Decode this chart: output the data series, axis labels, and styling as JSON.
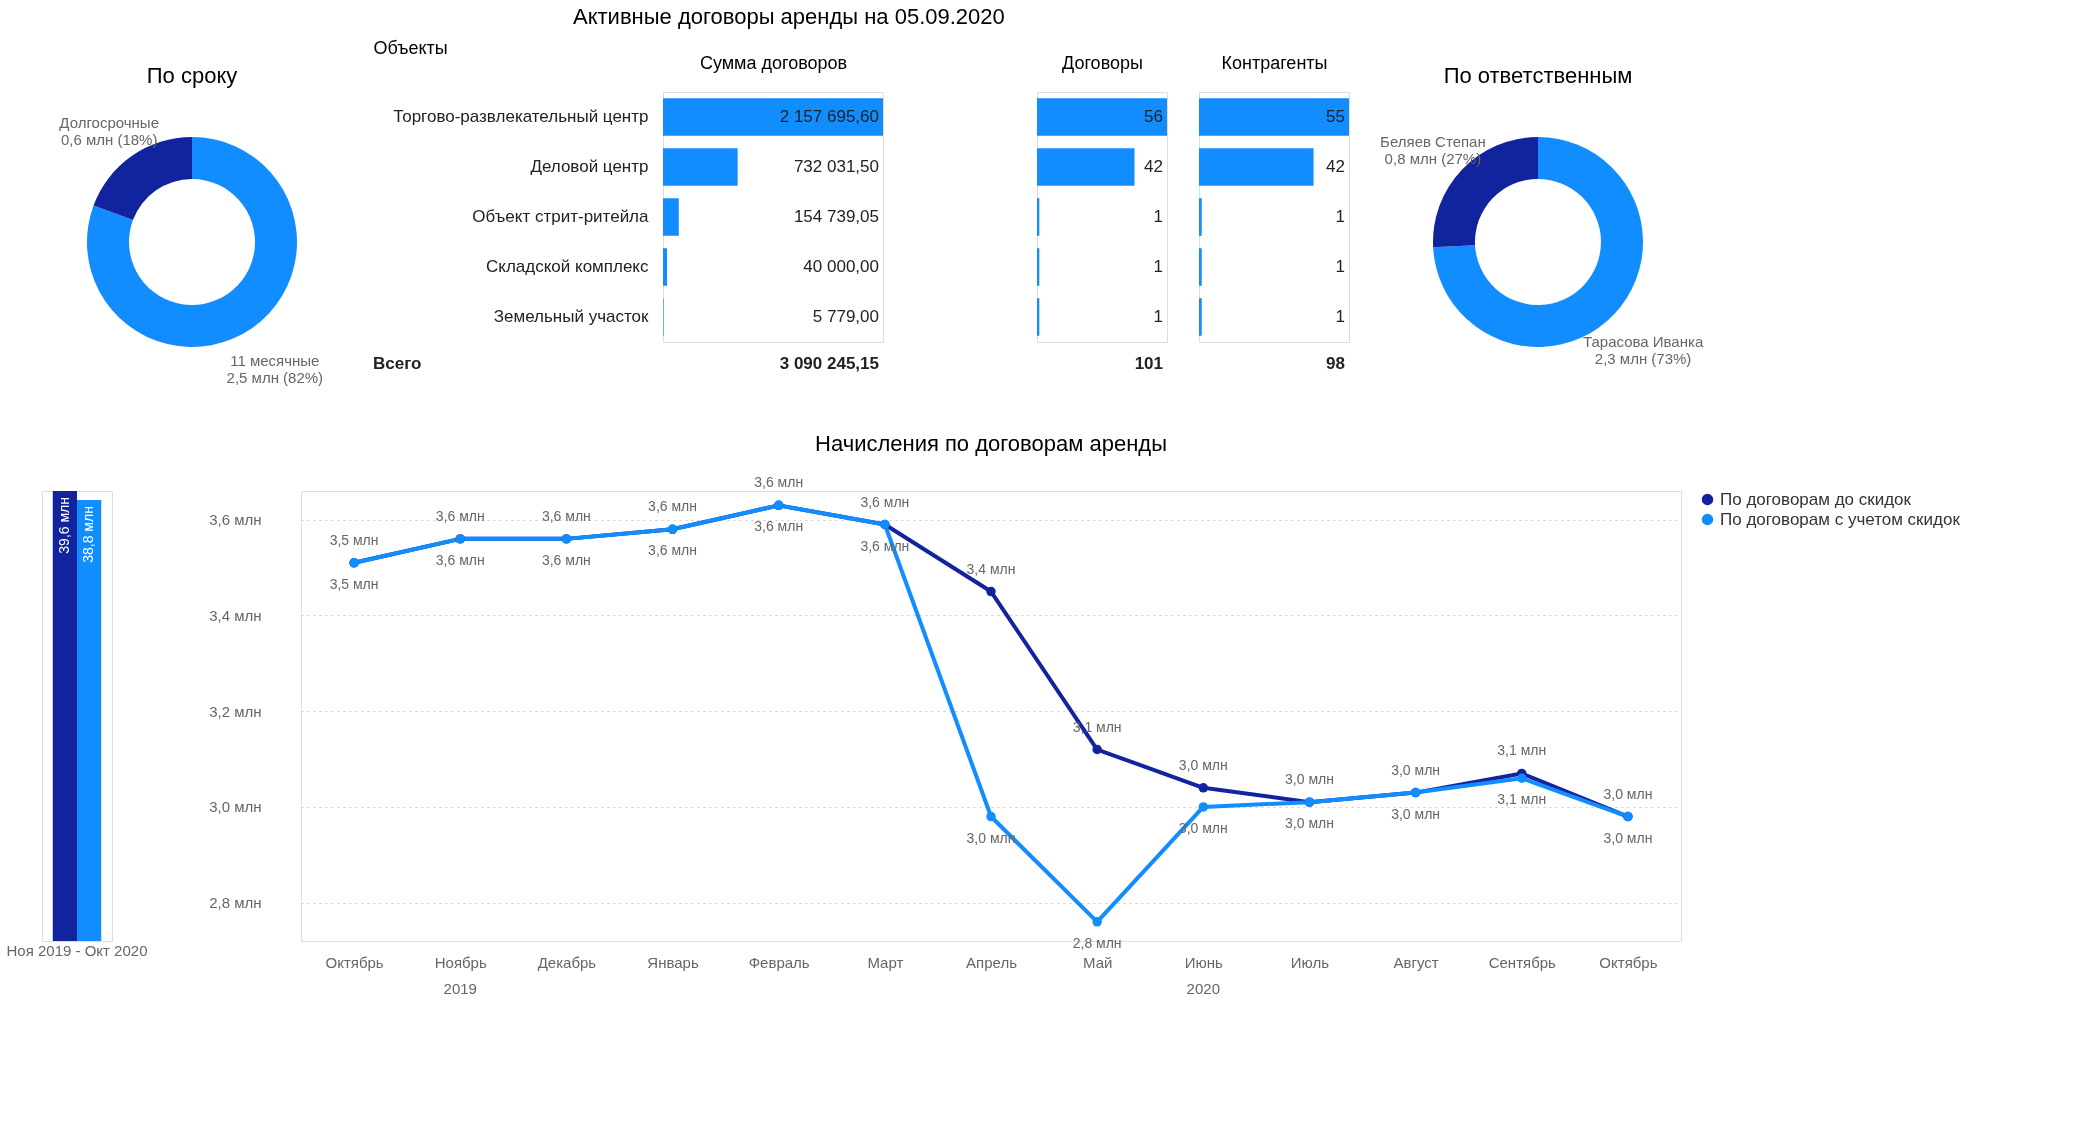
{
  "chart_data": [
    {
      "type": "donut",
      "title": "По сроку",
      "categories": [
        "11 месячные",
        "Долгосрочные"
      ],
      "values": [
        2.5,
        0.6
      ],
      "value_labels": [
        "2,5 млн (82%)",
        "0,6 млн (18%)"
      ],
      "colors": [
        "#118dff",
        "#12239e"
      ]
    },
    {
      "type": "bar",
      "orientation": "horizontal",
      "title": "Активные договоры аренды на 05.09.2020",
      "xlabel": "Сумма договоров",
      "ylabel": "Объекты",
      "categories": [
        "Торгово-развлекательный центр",
        "Деловой центр",
        "Объект стрит-ритейла",
        "Складской комплекс",
        "Земельный участок"
      ],
      "values": [
        2157695.6,
        732031.5,
        154739.05,
        40000.0,
        5779.0
      ],
      "value_labels": [
        "2 157 695,60",
        "732 031,50",
        "154 739,05",
        "40 000,00",
        "5 779,00"
      ],
      "color": "#118dff",
      "tick_labels": "y",
      "annotations": [
        "Всего",
        "3 090 245,15"
      ]
    },
    {
      "type": "bar",
      "orientation": "horizontal",
      "xlabel": "Договоры",
      "values": [
        56,
        42,
        1,
        1,
        1
      ],
      "data_labels": true,
      "color": "#118dff",
      "tick_labels": false,
      "annotations": [
        "101"
      ]
    },
    {
      "type": "bar",
      "orientation": "horizontal",
      "xlabel": "Контрагенты",
      "values": [
        55,
        42,
        1,
        1,
        1
      ],
      "data_labels": true,
      "color": "#118dff",
      "tick_labels": false,
      "annotations": [
        "98"
      ]
    },
    {
      "type": "donut",
      "title": "По ответственным",
      "categories": [
        "Тарасова Иванка",
        "Беляев Степан"
      ],
      "values": [
        2.3,
        0.8
      ],
      "value_labels": [
        "2,3 млн (73%)",
        "0,8 млн (27%)"
      ],
      "colors": [
        "#118dff",
        "#12239e"
      ]
    },
    {
      "type": "bar",
      "categories": [
        "Ноя 2019 - Окт 2020"
      ],
      "series": [
        {
          "color": "#12239e",
          "values": [
            39.6
          ],
          "value_labels": [
            "39,6 млн"
          ]
        },
        {
          "color": "#118dff",
          "values": [
            38.8
          ],
          "value_labels": [
            "38,8 млн"
          ]
        }
      ]
    },
    {
      "type": "line",
      "title": "Начисления по договорам аренды",
      "categories": [
        "Октябрь",
        "Ноябрь",
        "Декабрь",
        "Январь",
        "Февраль",
        "Март",
        "Апрель",
        "Май",
        "Июнь",
        "Июль",
        "Август",
        "Сентябрь",
        "Октябрь"
      ],
      "series": [
        {
          "name": "По договорам до скидок",
          "color": "#12239e",
          "values": [
            3.51,
            3.56,
            3.56,
            3.58,
            3.63,
            3.59,
            3.45,
            3.12,
            3.04,
            3.01,
            3.03,
            3.07,
            2.98
          ],
          "value_labels": [
            "3,5 млн",
            "3,6 млн",
            "3,6 млн",
            "3,6 млн",
            "3,6 млн",
            "3,6 млн",
            "3,4 млн",
            "3,1 млн",
            "3,0 млн",
            "3,0 млн",
            "3,0 млн",
            "3,1 млн",
            "3,0 млн"
          ]
        },
        {
          "name": "По договорам с учетом скидок",
          "color": "#118dff",
          "values": [
            3.51,
            3.56,
            3.56,
            3.58,
            3.63,
            3.59,
            2.98,
            2.76,
            3.0,
            3.01,
            3.03,
            3.06,
            2.98
          ],
          "value_labels": [
            "3,5 млн",
            "3,6 млн",
            "3,6 млн",
            "3,6 млн",
            "3,6 млн",
            "3,6 млн",
            "3,0 млн",
            "2,8 млн",
            "3,0 млн",
            "3,0 млн",
            "3,0 млн",
            "3,1 млн",
            "3,0 млн"
          ]
        }
      ],
      "ylim": [
        2.72,
        3.66
      ],
      "yticks": [
        {
          "value": 2.8,
          "label": "2,8 млн"
        },
        {
          "value": 3.0,
          "label": "3,0 млн"
        },
        {
          "value": 3.2,
          "label": "3,2 млн"
        },
        {
          "value": 3.4,
          "label": "3,4 млн"
        },
        {
          "value": 3.6,
          "label": "3,6 млн"
        }
      ],
      "grid": "y",
      "marker": "circle",
      "line_style": "solid",
      "legend": "right",
      "annotations": [
        "2019",
        "2020"
      ]
    }
  ]
}
